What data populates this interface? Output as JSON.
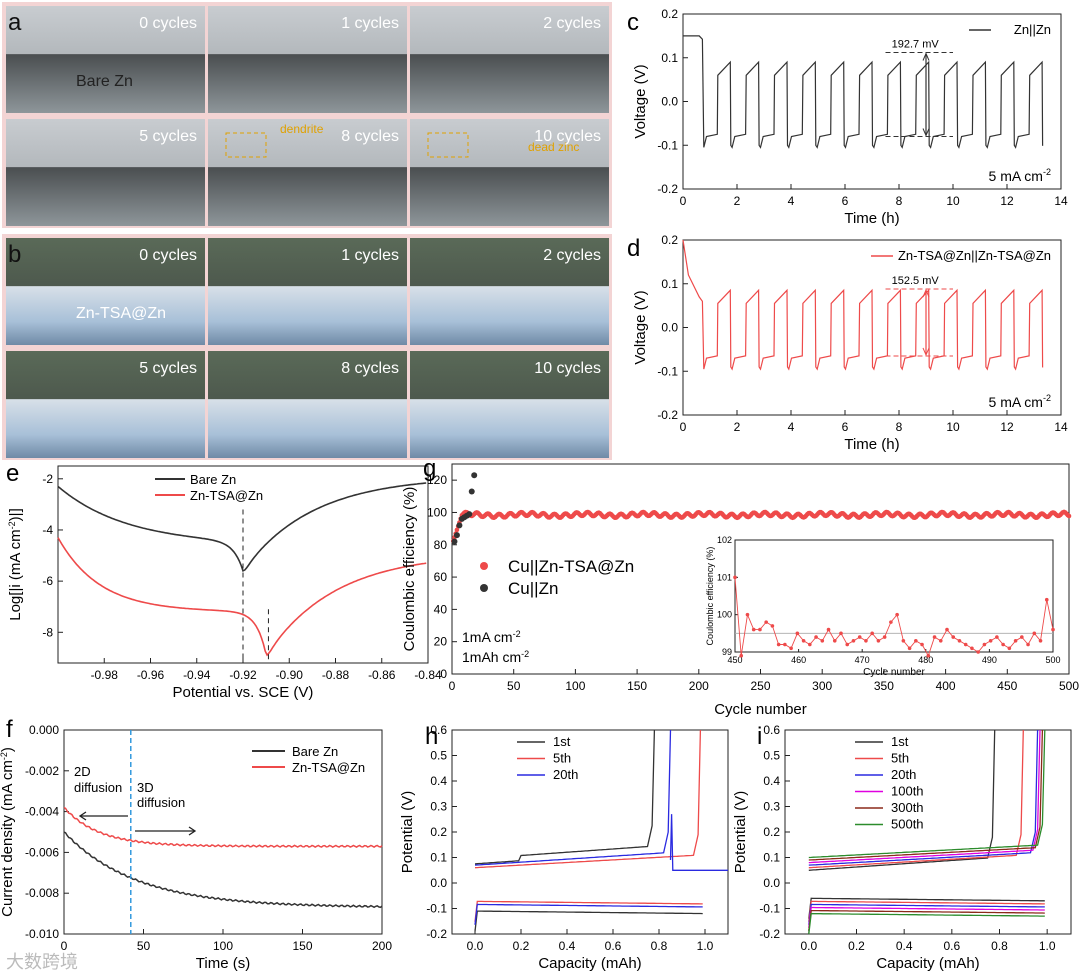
{
  "panels": {
    "a": {
      "label": "a",
      "tiles": [
        {
          "caption": "0 cycles",
          "sub": "Bare Zn"
        },
        {
          "caption": "1 cycles"
        },
        {
          "caption": "2 cycles"
        },
        {
          "caption": "5 cycles"
        },
        {
          "caption": "8 cycles",
          "note": "dendrite"
        },
        {
          "caption": "10 cycles",
          "note": "dead zinc"
        }
      ]
    },
    "b": {
      "label": "b",
      "tiles": [
        {
          "caption": "0 cycles",
          "sub": "Zn-TSA@Zn"
        },
        {
          "caption": "1 cycles"
        },
        {
          "caption": "2 cycles"
        },
        {
          "caption": "5 cycles"
        },
        {
          "caption": "8 cycles"
        },
        {
          "caption": "10 cycles"
        }
      ]
    }
  },
  "colors": {
    "black_series": "#333333",
    "red_series": "#ee4a4a",
    "blue_series": "#2a2ae0",
    "magenta": "#e000e0",
    "brown": "#8b2a1a",
    "green": "#2c8c2c",
    "dash_blue": "#3399dd"
  },
  "chart_data": [
    {
      "id": "c",
      "panel_label": "c",
      "type": "line",
      "xlabel": "Time (h)",
      "ylabel": "Voltage (V)",
      "xlim": [
        0,
        14
      ],
      "ylim": [
        -0.2,
        0.2
      ],
      "xticks": [
        "0",
        "2",
        "4",
        "6",
        "8",
        "10",
        "12",
        "14"
      ],
      "yticks": [
        "-0.2",
        "-0.1",
        "0.0",
        "0.1",
        "0.2"
      ],
      "legend": [
        "Zn||Zn"
      ],
      "annotation": "192.7 mV",
      "corner_text": "5 mA cm",
      "corner_sup": "-2",
      "series": [
        {
          "name": "Zn||Zn",
          "charge_v_start": 0.06,
          "charge_v_end": 0.09,
          "discharge_v": -0.08,
          "initial_v": 0.15,
          "cycles": 12,
          "period_h": 1.05
        }
      ]
    },
    {
      "id": "d",
      "panel_label": "d",
      "type": "line",
      "xlabel": "Time (h)",
      "ylabel": "Voltage (V)",
      "xlim": [
        0,
        14
      ],
      "ylim": [
        -0.2,
        0.2
      ],
      "xticks": [
        "0",
        "2",
        "4",
        "6",
        "8",
        "10",
        "12",
        "14"
      ],
      "yticks": [
        "-0.2",
        "-0.1",
        "0.0",
        "0.1",
        "0.2"
      ],
      "legend": [
        "Zn-TSA@Zn||Zn-TSA@Zn"
      ],
      "annotation": "152.5 mV",
      "corner_text": "5 mA cm",
      "corner_sup": "-2",
      "series": [
        {
          "name": "Zn-TSA@Zn||Zn-TSA@Zn",
          "charge_v_start": 0.055,
          "charge_v_end": 0.085,
          "discharge_v": -0.07,
          "initial_v": 0.2,
          "cycles": 12,
          "period_h": 1.05
        }
      ]
    },
    {
      "id": "e",
      "panel_label": "e",
      "type": "line",
      "xlabel": "Potential vs. SCE (V)",
      "ylabel": "Log[|i (mA cm",
      "ylabel_sup": "-2",
      "ylabel_end": ")|]",
      "xlim": [
        -1.0,
        -0.84
      ],
      "ylim": [
        -9.2,
        -1.5
      ],
      "xticks": [
        "-0.98",
        "-0.96",
        "-0.94",
        "-0.92",
        "-0.90",
        "-0.88",
        "-0.86",
        "-0.84"
      ],
      "yticks": [
        "-8",
        "-6",
        "-4",
        "-2"
      ],
      "series": [
        {
          "name": "Bare Zn",
          "corrosion_potential": -0.92,
          "min_log_i": -5.6
        },
        {
          "name": "Zn-TSA@Zn",
          "corrosion_potential": -0.91,
          "min_log_i": -8.9
        }
      ]
    },
    {
      "id": "f",
      "panel_label": "f",
      "type": "line",
      "xlabel": "Time (s)",
      "ylabel": "Current density (mA cm",
      "ylabel_sup": "-2",
      "ylabel_end": ")",
      "xlim": [
        0,
        200
      ],
      "ylim": [
        -0.01,
        0.0
      ],
      "xticks": [
        "0",
        "50",
        "100",
        "150",
        "200"
      ],
      "yticks": [
        "-0.010",
        "-0.008",
        "-0.006",
        "-0.004",
        "-0.002",
        "0.000"
      ],
      "annotations": [
        "2D",
        "diffusion",
        "3D",
        "diffusion"
      ],
      "divider_x": 42,
      "series": [
        {
          "name": "Bare Zn",
          "start": -0.005,
          "end": -0.0087
        },
        {
          "name": "Zn-TSA@Zn",
          "start": -0.0038,
          "end": -0.0057
        }
      ]
    },
    {
      "id": "g",
      "panel_label": "g",
      "type": "scatter",
      "xlabel": "Cycle number",
      "ylabel": "Coulombic efficiency (%)",
      "xlim": [
        0,
        500
      ],
      "ylim": [
        0,
        130
      ],
      "xticks": [
        "0",
        "50",
        "100",
        "150",
        "200",
        "250",
        "300",
        "350",
        "400",
        "450",
        "500"
      ],
      "yticks": [
        "0",
        "20",
        "40",
        "60",
        "80",
        "100",
        "120"
      ],
      "conditions": [
        "1mA cm",
        "1mAh cm"
      ],
      "condition_sup": "-2",
      "series": [
        {
          "name": "Cu||Zn-TSA@Zn",
          "steady_value": 98.5
        },
        {
          "name": "Cu||Zn",
          "points_x": [
            2,
            4,
            6,
            8,
            10,
            12,
            14,
            16,
            18
          ],
          "points_y": [
            82,
            86,
            92,
            96,
            97,
            98,
            99,
            113,
            123
          ]
        }
      ],
      "inset": {
        "xlabel": "Cycle number",
        "ylabel": "Coulombic efficiency (%)",
        "xlim": [
          450,
          500
        ],
        "ylim": [
          99,
          102
        ],
        "xticks": [
          "450",
          "460",
          "470",
          "480",
          "490",
          "500"
        ],
        "yticks": [
          "99",
          "100",
          "101",
          "102"
        ],
        "values": [
          101.0,
          98.9,
          100.0,
          99.6,
          99.6,
          99.8,
          99.7,
          99.2,
          99.2,
          99.1,
          99.5,
          99.3,
          99.2,
          99.4,
          99.3,
          99.6,
          99.3,
          99.5,
          99.2,
          99.3,
          99.4,
          99.3,
          99.5,
          99.3,
          99.4,
          99.8,
          100.0,
          99.3,
          99.1,
          99.3,
          99.2,
          98.9,
          99.4,
          99.3,
          99.6,
          99.4,
          99.3,
          99.2,
          99.1,
          99.0,
          99.2,
          99.3,
          99.4,
          99.2,
          99.1,
          99.3,
          99.4,
          99.2,
          99.5,
          99.3,
          100.4,
          99.6
        ],
        "mean": 99.5
      }
    },
    {
      "id": "h",
      "panel_label": "h",
      "type": "line",
      "xlabel": "Capacity (mAh)",
      "ylabel": "Potential (V)",
      "xlim": [
        -0.1,
        1.1
      ],
      "ylim": [
        -0.2,
        0.6
      ],
      "xticks": [
        "0.0",
        "0.2",
        "0.4",
        "0.6",
        "0.8",
        "1.0"
      ],
      "yticks": [
        "-0.2",
        "-0.1",
        "0.0",
        "0.1",
        "0.2",
        "0.3",
        "0.4",
        "0.5",
        "0.6"
      ],
      "series": [
        {
          "name": "1st",
          "end_capacity": 0.78
        },
        {
          "name": "5th",
          "end_capacity": 0.98
        },
        {
          "name": "20th",
          "end_capacity": 0.85
        }
      ]
    },
    {
      "id": "i",
      "panel_label": "i",
      "type": "line",
      "xlabel": "Capacity (mAh)",
      "ylabel": "Potential (V)",
      "xlim": [
        -0.1,
        1.1
      ],
      "ylim": [
        -0.2,
        0.6
      ],
      "xticks": [
        "0.0",
        "0.2",
        "0.4",
        "0.6",
        "0.8",
        "1.0"
      ],
      "yticks": [
        "-0.2",
        "-0.1",
        "0.0",
        "0.1",
        "0.2",
        "0.3",
        "0.4",
        "0.5",
        "0.6"
      ],
      "series": [
        {
          "name": "1st",
          "end_capacity": 0.78
        },
        {
          "name": "5th",
          "end_capacity": 0.9
        },
        {
          "name": "20th",
          "end_capacity": 0.96
        },
        {
          "name": "100th",
          "end_capacity": 0.97
        },
        {
          "name": "300th",
          "end_capacity": 0.98
        },
        {
          "name": "500th",
          "end_capacity": 0.99
        }
      ]
    }
  ],
  "watermark": "大数跨境"
}
